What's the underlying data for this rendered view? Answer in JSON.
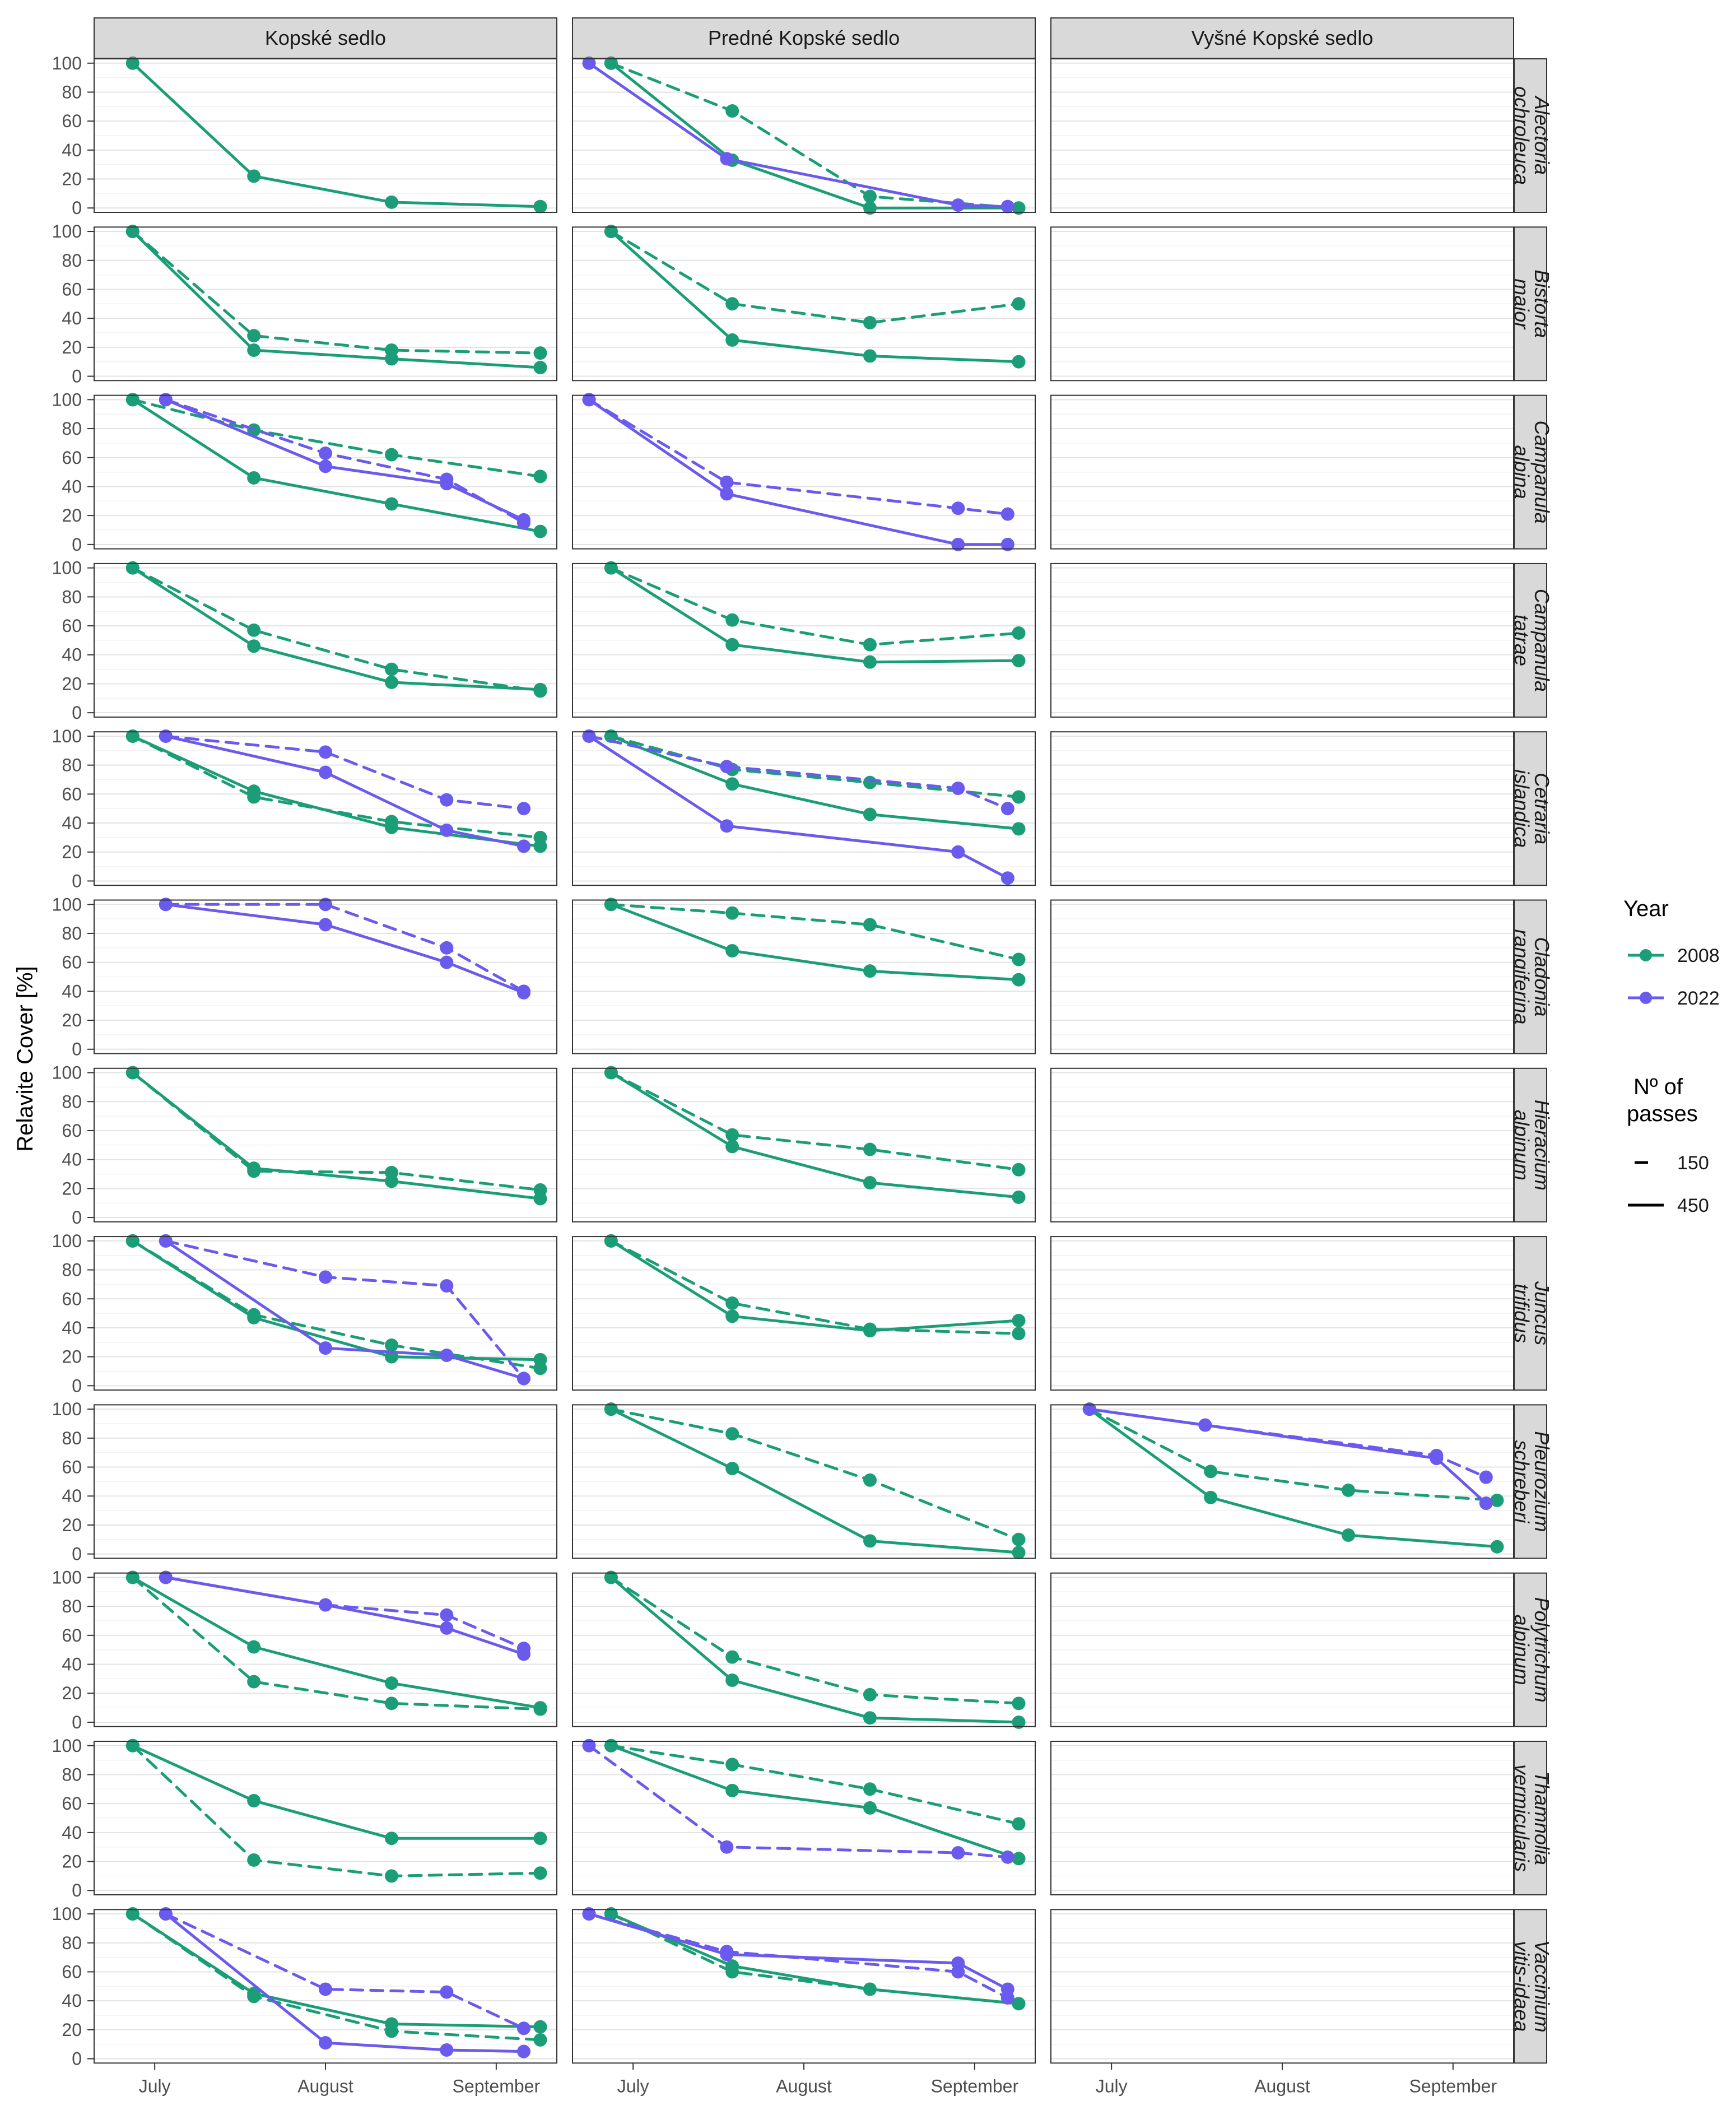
{
  "chart_data": {
    "type": "line",
    "facet_columns": [
      "Kopské sedlo",
      "Predné Kopské sedlo",
      "Vyšné Kopské sedlo"
    ],
    "facet_rows": [
      [
        "Alectoria",
        "ochroleuca"
      ],
      [
        "Bistorta",
        "major"
      ],
      [
        "Campanula",
        "alpina"
      ],
      [
        "Campanula",
        "tatrae"
      ],
      [
        "Cetraria",
        "islandica"
      ],
      [
        "Cladonia",
        "rangiferina"
      ],
      [
        "Hieracium",
        "alpinum"
      ],
      [
        "Juncus",
        "trifidus"
      ],
      [
        "Pleurozium",
        "schreberi"
      ],
      [
        "Polytrichum",
        "alpinum"
      ],
      [
        "Thamnolia",
        "vermicularis"
      ],
      [
        "Vaccinium",
        "vitis-idaea"
      ]
    ],
    "x_ticks": [
      {
        "label": "July",
        "day": 182
      },
      {
        "label": "August",
        "day": 213
      },
      {
        "label": "September",
        "day": 244
      }
    ],
    "xlim": [
      171,
      255
    ],
    "ylim": [
      -3,
      103
    ],
    "y_ticks": [
      0,
      20,
      40,
      60,
      80,
      100
    ],
    "ylabel": "Relavite Cover [%]",
    "xlabel": "",
    "colors": {
      "2008": "#1b9e77",
      "2022": "#6a5aed"
    },
    "legend": {
      "year_title": "Year",
      "year_entries": [
        "2008",
        "2022"
      ],
      "passes_title": [
        "Nº of",
        "passes"
      ],
      "passes_entries": [
        "150",
        "450"
      ]
    },
    "series": [
      {
        "row": 0,
        "col": 0,
        "year": "2008",
        "passes": "450",
        "x": [
          178,
          200,
          225,
          252
        ],
        "values": [
          100,
          22,
          4,
          1
        ]
      },
      {
        "row": 0,
        "col": 1,
        "year": "2008",
        "passes": "450",
        "x": [
          178,
          200,
          225,
          252
        ],
        "values": [
          100,
          33,
          0,
          0
        ]
      },
      {
        "row": 0,
        "col": 1,
        "year": "2008",
        "passes": "150",
        "x": [
          178,
          200,
          225,
          252
        ],
        "values": [
          100,
          67,
          8,
          0
        ]
      },
      {
        "row": 0,
        "col": 1,
        "year": "2022",
        "passes": "450",
        "x": [
          174,
          199,
          241,
          250
        ],
        "values": [
          100,
          34,
          2,
          1
        ]
      },
      {
        "row": 1,
        "col": 0,
        "year": "2008",
        "passes": "450",
        "x": [
          178,
          200,
          225,
          252
        ],
        "values": [
          100,
          18,
          12,
          6
        ]
      },
      {
        "row": 1,
        "col": 0,
        "year": "2008",
        "passes": "150",
        "x": [
          178,
          200,
          225,
          252
        ],
        "values": [
          100,
          28,
          18,
          16
        ]
      },
      {
        "row": 1,
        "col": 1,
        "year": "2008",
        "passes": "450",
        "x": [
          178,
          200,
          225,
          252
        ],
        "values": [
          100,
          25,
          14,
          10
        ]
      },
      {
        "row": 1,
        "col": 1,
        "year": "2008",
        "passes": "150",
        "x": [
          178,
          200,
          225,
          252
        ],
        "values": [
          100,
          50,
          37,
          50
        ]
      },
      {
        "row": 2,
        "col": 0,
        "year": "2008",
        "passes": "450",
        "x": [
          178,
          200,
          225,
          252
        ],
        "values": [
          100,
          46,
          28,
          9
        ]
      },
      {
        "row": 2,
        "col": 0,
        "year": "2008",
        "passes": "150",
        "x": [
          178,
          200,
          225,
          252
        ],
        "values": [
          100,
          79,
          62,
          47
        ]
      },
      {
        "row": 2,
        "col": 0,
        "year": "2022",
        "passes": "450",
        "x": [
          184,
          213,
          235,
          249
        ],
        "values": [
          100,
          54,
          42,
          17
        ]
      },
      {
        "row": 2,
        "col": 0,
        "year": "2022",
        "passes": "150",
        "x": [
          184,
          213,
          235,
          249
        ],
        "values": [
          100,
          63,
          45,
          15
        ]
      },
      {
        "row": 2,
        "col": 1,
        "year": "2022",
        "passes": "450",
        "x": [
          174,
          199,
          241,
          250
        ],
        "values": [
          100,
          35,
          0,
          0
        ]
      },
      {
        "row": 2,
        "col": 1,
        "year": "2022",
        "passes": "150",
        "x": [
          174,
          199,
          241,
          250
        ],
        "values": [
          100,
          43,
          25,
          21
        ]
      },
      {
        "row": 3,
        "col": 0,
        "year": "2008",
        "passes": "450",
        "x": [
          178,
          200,
          225,
          252
        ],
        "values": [
          100,
          46,
          21,
          16
        ]
      },
      {
        "row": 3,
        "col": 0,
        "year": "2008",
        "passes": "150",
        "x": [
          178,
          200,
          225,
          252
        ],
        "values": [
          100,
          57,
          30,
          15
        ]
      },
      {
        "row": 3,
        "col": 1,
        "year": "2008",
        "passes": "450",
        "x": [
          178,
          200,
          225,
          252
        ],
        "values": [
          100,
          47,
          35,
          36
        ]
      },
      {
        "row": 3,
        "col": 1,
        "year": "2008",
        "passes": "150",
        "x": [
          178,
          200,
          225,
          252
        ],
        "values": [
          100,
          64,
          47,
          55
        ]
      },
      {
        "row": 4,
        "col": 0,
        "year": "2008",
        "passes": "450",
        "x": [
          178,
          200,
          225,
          252
        ],
        "values": [
          100,
          62,
          37,
          24
        ]
      },
      {
        "row": 4,
        "col": 0,
        "year": "2008",
        "passes": "150",
        "x": [
          178,
          200,
          225,
          252
        ],
        "values": [
          100,
          58,
          41,
          30
        ]
      },
      {
        "row": 4,
        "col": 0,
        "year": "2022",
        "passes": "450",
        "x": [
          184,
          213,
          235,
          249
        ],
        "values": [
          100,
          75,
          35,
          24
        ]
      },
      {
        "row": 4,
        "col": 0,
        "year": "2022",
        "passes": "150",
        "x": [
          184,
          213,
          235,
          249
        ],
        "values": [
          100,
          89,
          56,
          50
        ]
      },
      {
        "row": 4,
        "col": 1,
        "year": "2008",
        "passes": "450",
        "x": [
          178,
          200,
          225,
          252
        ],
        "values": [
          100,
          67,
          46,
          36
        ]
      },
      {
        "row": 4,
        "col": 1,
        "year": "2008",
        "passes": "150",
        "x": [
          178,
          200,
          225,
          252
        ],
        "values": [
          100,
          77,
          68,
          58
        ]
      },
      {
        "row": 4,
        "col": 1,
        "year": "2022",
        "passes": "450",
        "x": [
          174,
          199,
          241,
          250
        ],
        "values": [
          100,
          38,
          20,
          2
        ]
      },
      {
        "row": 4,
        "col": 1,
        "year": "2022",
        "passes": "150",
        "x": [
          174,
          199,
          241,
          250
        ],
        "values": [
          100,
          79,
          64,
          50
        ]
      },
      {
        "row": 5,
        "col": 0,
        "year": "2022",
        "passes": "450",
        "x": [
          184,
          213,
          235,
          249
        ],
        "values": [
          100,
          86,
          60,
          39
        ]
      },
      {
        "row": 5,
        "col": 0,
        "year": "2022",
        "passes": "150",
        "x": [
          184,
          213,
          235,
          249
        ],
        "values": [
          100,
          100,
          70,
          40
        ]
      },
      {
        "row": 5,
        "col": 1,
        "year": "2008",
        "passes": "450",
        "x": [
          178,
          200,
          225,
          252
        ],
        "values": [
          100,
          68,
          54,
          48
        ]
      },
      {
        "row": 5,
        "col": 1,
        "year": "2008",
        "passes": "150",
        "x": [
          178,
          200,
          225,
          252
        ],
        "values": [
          100,
          94,
          86,
          62
        ]
      },
      {
        "row": 6,
        "col": 0,
        "year": "2008",
        "passes": "450",
        "x": [
          178,
          200,
          225,
          252
        ],
        "values": [
          100,
          34,
          25,
          13
        ]
      },
      {
        "row": 6,
        "col": 0,
        "year": "2008",
        "passes": "150",
        "x": [
          178,
          200,
          225,
          252
        ],
        "values": [
          100,
          32,
          31,
          19
        ]
      },
      {
        "row": 6,
        "col": 1,
        "year": "2008",
        "passes": "450",
        "x": [
          178,
          200,
          225,
          252
        ],
        "values": [
          100,
          49,
          24,
          14
        ]
      },
      {
        "row": 6,
        "col": 1,
        "year": "2008",
        "passes": "150",
        "x": [
          178,
          200,
          225,
          252
        ],
        "values": [
          100,
          57,
          47,
          33
        ]
      },
      {
        "row": 7,
        "col": 0,
        "year": "2008",
        "passes": "450",
        "x": [
          178,
          200,
          225,
          252
        ],
        "values": [
          100,
          47,
          20,
          18
        ]
      },
      {
        "row": 7,
        "col": 0,
        "year": "2008",
        "passes": "150",
        "x": [
          178,
          200,
          225,
          252
        ],
        "values": [
          100,
          49,
          28,
          12
        ]
      },
      {
        "row": 7,
        "col": 0,
        "year": "2022",
        "passes": "450",
        "x": [
          184,
          213,
          235,
          249
        ],
        "values": [
          100,
          26,
          21,
          5
        ]
      },
      {
        "row": 7,
        "col": 0,
        "year": "2022",
        "passes": "150",
        "x": [
          184,
          213,
          235,
          249
        ],
        "values": [
          100,
          75,
          69,
          5
        ]
      },
      {
        "row": 7,
        "col": 1,
        "year": "2008",
        "passes": "450",
        "x": [
          178,
          200,
          225,
          252
        ],
        "values": [
          100,
          48,
          38,
          45
        ]
      },
      {
        "row": 7,
        "col": 1,
        "year": "2008",
        "passes": "150",
        "x": [
          178,
          200,
          225,
          252
        ],
        "values": [
          100,
          57,
          39,
          36
        ]
      },
      {
        "row": 8,
        "col": 1,
        "year": "2008",
        "passes": "450",
        "x": [
          178,
          200,
          225,
          252
        ],
        "values": [
          100,
          59,
          9,
          1
        ]
      },
      {
        "row": 8,
        "col": 1,
        "year": "2008",
        "passes": "150",
        "x": [
          178,
          200,
          225,
          252
        ],
        "values": [
          100,
          83,
          51,
          10
        ]
      },
      {
        "row": 8,
        "col": 2,
        "year": "2008",
        "passes": "450",
        "x": [
          178,
          200,
          225,
          252
        ],
        "values": [
          100,
          39,
          13,
          5
        ]
      },
      {
        "row": 8,
        "col": 2,
        "year": "2008",
        "passes": "150",
        "x": [
          178,
          200,
          225,
          252
        ],
        "values": [
          100,
          57,
          44,
          37
        ]
      },
      {
        "row": 8,
        "col": 2,
        "year": "2022",
        "passes": "450",
        "x": [
          178,
          199,
          241,
          250
        ],
        "values": [
          100,
          89,
          66,
          35
        ]
      },
      {
        "row": 8,
        "col": 2,
        "year": "2022",
        "passes": "150",
        "x": [
          178,
          199,
          241,
          250
        ],
        "values": [
          100,
          89,
          68,
          53
        ]
      },
      {
        "row": 9,
        "col": 0,
        "year": "2008",
        "passes": "450",
        "x": [
          178,
          200,
          225,
          252
        ],
        "values": [
          100,
          52,
          27,
          10
        ]
      },
      {
        "row": 9,
        "col": 0,
        "year": "2008",
        "passes": "150",
        "x": [
          178,
          200,
          225,
          252
        ],
        "values": [
          100,
          28,
          13,
          9
        ]
      },
      {
        "row": 9,
        "col": 0,
        "year": "2022",
        "passes": "450",
        "x": [
          184,
          213,
          235,
          249
        ],
        "values": [
          100,
          81,
          65,
          47
        ]
      },
      {
        "row": 9,
        "col": 0,
        "year": "2022",
        "passes": "150",
        "x": [
          184,
          213,
          235,
          249
        ],
        "values": [
          100,
          81,
          74,
          51
        ]
      },
      {
        "row": 9,
        "col": 1,
        "year": "2008",
        "passes": "450",
        "x": [
          178,
          200,
          225,
          252
        ],
        "values": [
          100,
          29,
          3,
          0
        ]
      },
      {
        "row": 9,
        "col": 1,
        "year": "2008",
        "passes": "150",
        "x": [
          178,
          200,
          225,
          252
        ],
        "values": [
          100,
          45,
          19,
          13
        ]
      },
      {
        "row": 10,
        "col": 0,
        "year": "2008",
        "passes": "450",
        "x": [
          178,
          200,
          225,
          252
        ],
        "values": [
          100,
          62,
          36,
          36
        ]
      },
      {
        "row": 10,
        "col": 0,
        "year": "2008",
        "passes": "150",
        "x": [
          178,
          200,
          225,
          252
        ],
        "values": [
          100,
          21,
          10,
          12
        ]
      },
      {
        "row": 10,
        "col": 1,
        "year": "2008",
        "passes": "450",
        "x": [
          178,
          200,
          225,
          252
        ],
        "values": [
          100,
          69,
          57,
          22
        ]
      },
      {
        "row": 10,
        "col": 1,
        "year": "2008",
        "passes": "150",
        "x": [
          178,
          200,
          225,
          252
        ],
        "values": [
          100,
          87,
          70,
          46
        ]
      },
      {
        "row": 10,
        "col": 1,
        "year": "2022",
        "passes": "150",
        "x": [
          174,
          199,
          241,
          250
        ],
        "values": [
          100,
          30,
          26,
          23
        ]
      },
      {
        "row": 11,
        "col": 0,
        "year": "2008",
        "passes": "450",
        "x": [
          178,
          200,
          225,
          252
        ],
        "values": [
          100,
          45,
          24,
          22
        ]
      },
      {
        "row": 11,
        "col": 0,
        "year": "2008",
        "passes": "150",
        "x": [
          178,
          200,
          225,
          252
        ],
        "values": [
          100,
          43,
          19,
          13
        ]
      },
      {
        "row": 11,
        "col": 0,
        "year": "2022",
        "passes": "450",
        "x": [
          184,
          213,
          235,
          249
        ],
        "values": [
          100,
          11,
          6,
          5
        ]
      },
      {
        "row": 11,
        "col": 0,
        "year": "2022",
        "passes": "150",
        "x": [
          184,
          213,
          235,
          249
        ],
        "values": [
          100,
          48,
          46,
          21
        ]
      },
      {
        "row": 11,
        "col": 1,
        "year": "2008",
        "passes": "450",
        "x": [
          178,
          200,
          225,
          252
        ],
        "values": [
          100,
          64,
          48,
          38
        ]
      },
      {
        "row": 11,
        "col": 1,
        "year": "2008",
        "passes": "150",
        "x": [
          178,
          200,
          225,
          252
        ],
        "values": [
          100,
          60,
          48,
          38
        ]
      },
      {
        "row": 11,
        "col": 1,
        "year": "2022",
        "passes": "450",
        "x": [
          174,
          199,
          241,
          250
        ],
        "values": [
          100,
          72,
          66,
          48
        ]
      },
      {
        "row": 11,
        "col": 1,
        "year": "2022",
        "passes": "150",
        "x": [
          174,
          199,
          241,
          250
        ],
        "values": [
          100,
          74,
          60,
          42
        ]
      }
    ]
  }
}
